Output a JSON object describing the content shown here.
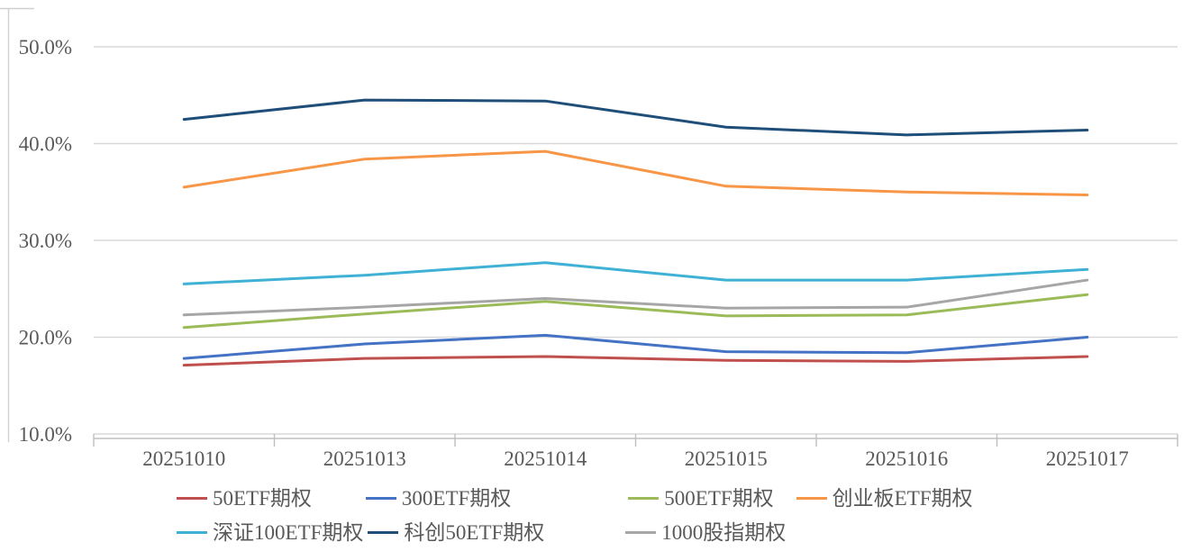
{
  "chart_data": {
    "type": "line",
    "title": "",
    "categories": [
      "20251010",
      "20251013",
      "20251014",
      "20251015",
      "20251016",
      "20251017"
    ],
    "series": [
      {
        "name": "50ETF期权",
        "color": "#C0504D",
        "values": [
          17.1,
          17.8,
          18.0,
          17.6,
          17.5,
          18.0
        ]
      },
      {
        "name": "300ETF期权",
        "color": "#4472C4",
        "values": [
          17.8,
          19.3,
          20.2,
          18.5,
          18.4,
          20.0
        ]
      },
      {
        "name": "500ETF期权",
        "color": "#9BBB59",
        "values": [
          21.0,
          22.4,
          23.7,
          22.2,
          22.3,
          24.4
        ]
      },
      {
        "name": "创业板ETF期权",
        "color": "#F79646",
        "values": [
          35.5,
          38.4,
          39.2,
          35.6,
          35.0,
          34.7
        ]
      },
      {
        "name": "深证100ETF期权",
        "color": "#3EB1D4",
        "values": [
          25.5,
          26.4,
          27.7,
          25.9,
          25.9,
          27.0
        ]
      },
      {
        "name": "科创50ETF期权",
        "color": "#1F4E79",
        "values": [
          42.5,
          44.5,
          44.4,
          41.7,
          40.9,
          41.4
        ]
      },
      {
        "name": "1000股指期权",
        "color": "#A6A6A6",
        "values": [
          22.3,
          23.1,
          24.0,
          23.0,
          23.1,
          25.9
        ]
      }
    ],
    "xlabel": "",
    "ylabel": "",
    "ylim": [
      10,
      54
    ],
    "yticks": [
      10,
      20,
      30,
      40,
      50
    ],
    "ytick_labels": [
      "10.0%",
      "20.0%",
      "30.0%",
      "40.0%",
      "50.0%"
    ],
    "grid": true,
    "legend_position": "bottom",
    "legend_rows": [
      [
        0,
        1,
        2,
        3
      ],
      [
        4,
        5,
        6
      ]
    ]
  },
  "colors": {
    "text": "#595959",
    "gridline": "#D9D9D9",
    "axis_line": "#BFBFBF",
    "chart_border": "#D0D0D0",
    "background": "#FFFFFF"
  }
}
